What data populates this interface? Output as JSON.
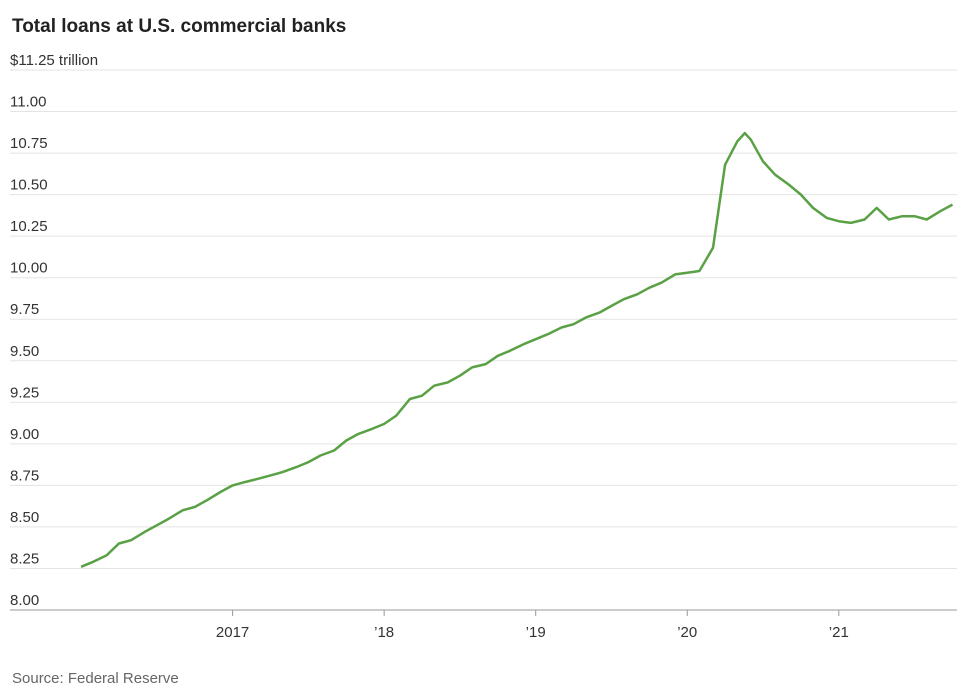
{
  "chart_data": {
    "type": "line",
    "title": "Total loans at U.S. commercial banks",
    "source": "Source: Federal Reserve",
    "x": [
      2016,
      2016.08,
      2016.17,
      2016.25,
      2016.33,
      2016.42,
      2016.5,
      2016.58,
      2016.67,
      2016.75,
      2016.83,
      2016.92,
      2017,
      2017.08,
      2017.17,
      2017.25,
      2017.33,
      2017.42,
      2017.5,
      2017.58,
      2017.67,
      2017.75,
      2017.83,
      2017.92,
      2018,
      2018.08,
      2018.17,
      2018.25,
      2018.33,
      2018.42,
      2018.5,
      2018.58,
      2018.67,
      2018.75,
      2018.83,
      2018.92,
      2019,
      2019.08,
      2019.17,
      2019.25,
      2019.33,
      2019.42,
      2019.5,
      2019.58,
      2019.67,
      2019.75,
      2019.83,
      2019.92,
      2020,
      2020.08,
      2020.17,
      2020.25,
      2020.33,
      2020.38,
      2020.42,
      2020.5,
      2020.58,
      2020.67,
      2020.75,
      2020.83,
      2020.92,
      2021,
      2021.08,
      2021.17,
      2021.25,
      2021.33,
      2021.42,
      2021.5,
      2021.58,
      2021.67,
      2021.75
    ],
    "series": [
      {
        "name": "Total loans",
        "color": "#5aa146",
        "values": [
          8.26,
          8.29,
          8.33,
          8.4,
          8.42,
          8.47,
          8.51,
          8.55,
          8.6,
          8.62,
          8.66,
          8.71,
          8.75,
          8.77,
          8.79,
          8.81,
          8.83,
          8.86,
          8.89,
          8.93,
          8.96,
          9.02,
          9.06,
          9.09,
          9.12,
          9.17,
          9.27,
          9.29,
          9.35,
          9.37,
          9.41,
          9.46,
          9.48,
          9.53,
          9.56,
          9.6,
          9.63,
          9.66,
          9.7,
          9.72,
          9.76,
          9.79,
          9.83,
          9.87,
          9.9,
          9.94,
          9.97,
          10.02,
          10.03,
          10.04,
          10.18,
          10.68,
          10.82,
          10.87,
          10.83,
          10.7,
          10.62,
          10.56,
          10.5,
          10.42,
          10.36,
          10.34,
          10.33,
          10.35,
          10.42,
          10.35,
          10.37,
          10.37,
          10.35,
          10.4,
          10.44
        ]
      }
    ],
    "xlim": [
      2015.96,
      2021.78
    ],
    "xticks": [
      {
        "value": 2017,
        "label": "2017"
      },
      {
        "value": 2018,
        "label": "’18"
      },
      {
        "value": 2019,
        "label": "’19"
      },
      {
        "value": 2020,
        "label": "’20"
      },
      {
        "value": 2021,
        "label": "’21"
      }
    ],
    "ylim": [
      8,
      11.25
    ],
    "yticks": [
      {
        "value": 8,
        "label": "8.00"
      },
      {
        "value": 8.25,
        "label": "8.25"
      },
      {
        "value": 8.5,
        "label": "8.50"
      },
      {
        "value": 8.75,
        "label": "8.75"
      },
      {
        "value": 9,
        "label": "9.00"
      },
      {
        "value": 9.25,
        "label": "9.25"
      },
      {
        "value": 9.5,
        "label": "9.50"
      },
      {
        "value": 9.75,
        "label": "9.75"
      },
      {
        "value": 10,
        "label": "10.00"
      },
      {
        "value": 10.25,
        "label": "10.25"
      },
      {
        "value": 10.5,
        "label": "10.50"
      },
      {
        "value": 10.75,
        "label": "10.75"
      },
      {
        "value": 11,
        "label": "11.00"
      },
      {
        "value": 11.25,
        "label": "$11.25 trillion"
      }
    ],
    "grid": true
  }
}
